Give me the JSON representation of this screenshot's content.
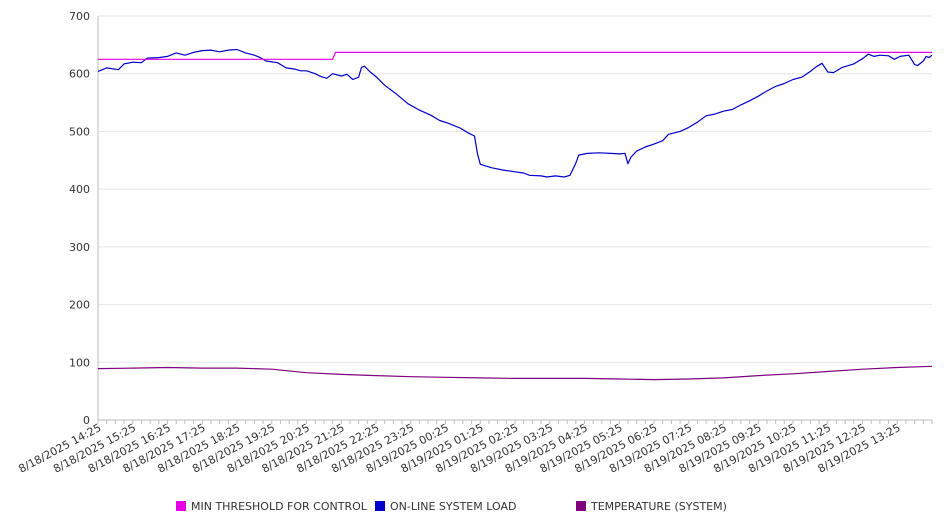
{
  "chart_data": {
    "type": "line",
    "ylim": [
      0,
      700
    ],
    "y_ticks": [
      "0",
      "100",
      "200",
      "300",
      "400",
      "500",
      "600",
      "700"
    ],
    "x_range": [
      "8/18/2025 14:25",
      "8/19/2025 14:25"
    ],
    "x_tick_labels": [
      "8/18/2025 14:25",
      "8/18/2025 15:25",
      "8/18/2025 16:25",
      "8/18/2025 17:25",
      "8/18/2025 18:25",
      "8/18/2025 19:25",
      "8/18/2025 20:25",
      "8/18/2025 21:25",
      "8/18/2025 22:25",
      "8/18/2025 23:25",
      "8/19/2025 00:25",
      "8/19/2025 01:25",
      "8/19/2025 02:25",
      "8/19/2025 03:25",
      "8/19/2025 04:25",
      "8/19/2025 05:25",
      "8/19/2025 06:25",
      "8/19/2025 07:25",
      "8/19/2025 08:25",
      "8/19/2025 09:25",
      "8/19/2025 10:25",
      "8/19/2025 11:25",
      "8/19/2025 12:25",
      "8/19/2025 13:25"
    ],
    "grid": true,
    "legend_position": "bottom",
    "series": [
      {
        "name": "MIN THRESHOLD FOR CONTROL",
        "color": "#e600e6",
        "points": [
          [
            "8/18/2025 14:25",
            625
          ],
          [
            "8/18/2025 21:10",
            625
          ],
          [
            "8/18/2025 21:15",
            637
          ],
          [
            "8/19/2025 14:25",
            637
          ]
        ]
      },
      {
        "name": "ON-LINE SYSTEM LOAD",
        "color": "#0000cc",
        "points": [
          [
            "8/18/2025 14:25",
            604
          ],
          [
            "8/18/2025 14:40",
            610
          ],
          [
            "8/18/2025 15:00",
            607
          ],
          [
            "8/18/2025 15:10",
            617
          ],
          [
            "8/18/2025 15:25",
            620
          ],
          [
            "8/18/2025 15:40",
            619
          ],
          [
            "8/18/2025 15:50",
            627
          ],
          [
            "8/18/2025 16:10",
            628
          ],
          [
            "8/18/2025 16:25",
            630
          ],
          [
            "8/18/2025 16:40",
            636
          ],
          [
            "8/18/2025 16:55",
            632
          ],
          [
            "8/18/2025 17:10",
            637
          ],
          [
            "8/18/2025 17:25",
            640
          ],
          [
            "8/18/2025 17:40",
            641
          ],
          [
            "8/18/2025 17:55",
            638
          ],
          [
            "8/18/2025 18:10",
            641
          ],
          [
            "8/18/2025 18:25",
            642
          ],
          [
            "8/18/2025 18:40",
            636
          ],
          [
            "8/18/2025 18:55",
            632
          ],
          [
            "8/18/2025 19:05",
            628
          ],
          [
            "8/18/2025 19:15",
            622
          ],
          [
            "8/18/2025 19:35",
            619
          ],
          [
            "8/18/2025 19:50",
            610
          ],
          [
            "8/18/2025 20:05",
            608
          ],
          [
            "8/18/2025 20:15",
            605
          ],
          [
            "8/18/2025 20:25",
            605
          ],
          [
            "8/18/2025 20:40",
            600
          ],
          [
            "8/18/2025 20:50",
            595
          ],
          [
            "8/18/2025 21:00",
            592
          ],
          [
            "8/18/2025 21:10",
            600
          ],
          [
            "8/18/2025 21:25",
            596
          ],
          [
            "8/18/2025 21:35",
            599
          ],
          [
            "8/18/2025 21:45",
            590
          ],
          [
            "8/18/2025 21:55",
            594
          ],
          [
            "8/18/2025 22:00",
            611
          ],
          [
            "8/18/2025 22:05",
            613
          ],
          [
            "8/18/2025 22:15",
            603
          ],
          [
            "8/18/2025 22:25",
            595
          ],
          [
            "8/18/2025 22:40",
            580
          ],
          [
            "8/18/2025 23:00",
            565
          ],
          [
            "8/18/2025 23:20",
            548
          ],
          [
            "8/18/2025 23:40",
            537
          ],
          [
            "8/19/2025 00:00",
            528
          ],
          [
            "8/19/2025 00:15",
            519
          ],
          [
            "8/19/2025 00:30",
            514
          ],
          [
            "8/19/2025 00:50",
            506
          ],
          [
            "8/19/2025 01:05",
            497
          ],
          [
            "8/19/2025 01:15",
            492
          ],
          [
            "8/19/2025 01:20",
            462
          ],
          [
            "8/19/2025 01:25",
            443
          ],
          [
            "8/19/2025 01:45",
            437
          ],
          [
            "8/19/2025 02:05",
            433
          ],
          [
            "8/19/2025 02:25",
            430
          ],
          [
            "8/19/2025 02:40",
            428
          ],
          [
            "8/19/2025 02:50",
            424
          ],
          [
            "8/19/2025 03:10",
            423
          ],
          [
            "8/19/2025 03:20",
            421
          ],
          [
            "8/19/2025 03:35",
            423
          ],
          [
            "8/19/2025 03:50",
            421
          ],
          [
            "8/19/2025 04:00",
            424
          ],
          [
            "8/19/2025 04:10",
            445
          ],
          [
            "8/19/2025 04:15",
            459
          ],
          [
            "8/19/2025 04:30",
            462
          ],
          [
            "8/19/2025 04:50",
            463
          ],
          [
            "8/19/2025 05:10",
            462
          ],
          [
            "8/19/2025 05:25",
            461
          ],
          [
            "8/19/2025 05:35",
            462
          ],
          [
            "8/19/2025 05:40",
            444
          ],
          [
            "8/19/2025 05:45",
            455
          ],
          [
            "8/19/2025 05:55",
            466
          ],
          [
            "8/19/2025 06:10",
            473
          ],
          [
            "8/19/2025 06:25",
            478
          ],
          [
            "8/19/2025 06:40",
            484
          ],
          [
            "8/19/2025 06:50",
            495
          ],
          [
            "8/19/2025 07:10",
            500
          ],
          [
            "8/19/2025 07:25",
            507
          ],
          [
            "8/19/2025 07:40",
            516
          ],
          [
            "8/19/2025 07:55",
            527
          ],
          [
            "8/19/2025 08:10",
            530
          ],
          [
            "8/19/2025 08:25",
            535
          ],
          [
            "8/19/2025 08:40",
            538
          ],
          [
            "8/19/2025 08:55",
            546
          ],
          [
            "8/19/2025 09:10",
            553
          ],
          [
            "8/19/2025 09:25",
            561
          ],
          [
            "8/19/2025 09:40",
            570
          ],
          [
            "8/19/2025 09:55",
            578
          ],
          [
            "8/19/2025 10:10",
            583
          ],
          [
            "8/19/2025 10:25",
            590
          ],
          [
            "8/19/2025 10:40",
            594
          ],
          [
            "8/19/2025 10:55",
            604
          ],
          [
            "8/19/2025 11:05",
            612
          ],
          [
            "8/19/2025 11:15",
            618
          ],
          [
            "8/19/2025 11:25",
            603
          ],
          [
            "8/19/2025 11:35",
            602
          ],
          [
            "8/19/2025 11:50",
            611
          ],
          [
            "8/19/2025 12:10",
            617
          ],
          [
            "8/19/2025 12:25",
            626
          ],
          [
            "8/19/2025 12:35",
            634
          ],
          [
            "8/19/2025 12:45",
            630
          ],
          [
            "8/19/2025 12:55",
            632
          ],
          [
            "8/19/2025 13:10",
            631
          ],
          [
            "8/19/2025 13:20",
            625
          ],
          [
            "8/19/2025 13:30",
            630
          ],
          [
            "8/19/2025 13:45",
            632
          ],
          [
            "8/19/2025 13:55",
            616
          ],
          [
            "8/19/2025 14:00",
            614
          ],
          [
            "8/19/2025 14:10",
            622
          ],
          [
            "8/19/2025 14:15",
            630
          ],
          [
            "8/19/2025 14:20",
            628
          ],
          [
            "8/19/2025 14:25",
            632
          ]
        ]
      },
      {
        "name": "TEMPERATURE (SYSTEM)",
        "color": "#800080",
        "points": [
          [
            "8/18/2025 14:25",
            89
          ],
          [
            "8/18/2025 15:25",
            90
          ],
          [
            "8/18/2025 16:25",
            91
          ],
          [
            "8/18/2025 17:25",
            90
          ],
          [
            "8/18/2025 18:25",
            90
          ],
          [
            "8/18/2025 19:25",
            88
          ],
          [
            "8/18/2025 20:25",
            82
          ],
          [
            "8/18/2025 21:25",
            79
          ],
          [
            "8/18/2025 22:25",
            77
          ],
          [
            "8/18/2025 23:25",
            75
          ],
          [
            "8/19/2025 00:25",
            74
          ],
          [
            "8/19/2025 01:25",
            73
          ],
          [
            "8/19/2025 02:25",
            72
          ],
          [
            "8/19/2025 03:25",
            72
          ],
          [
            "8/19/2025 04:25",
            72
          ],
          [
            "8/19/2025 05:25",
            71
          ],
          [
            "8/19/2025 06:25",
            70
          ],
          [
            "8/19/2025 07:25",
            71
          ],
          [
            "8/19/2025 08:25",
            73
          ],
          [
            "8/19/2025 09:25",
            77
          ],
          [
            "8/19/2025 10:25",
            80
          ],
          [
            "8/19/2025 11:25",
            84
          ],
          [
            "8/19/2025 12:25",
            88
          ],
          [
            "8/19/2025 13:25",
            91
          ],
          [
            "8/19/2025 14:25",
            93
          ]
        ]
      }
    ]
  }
}
